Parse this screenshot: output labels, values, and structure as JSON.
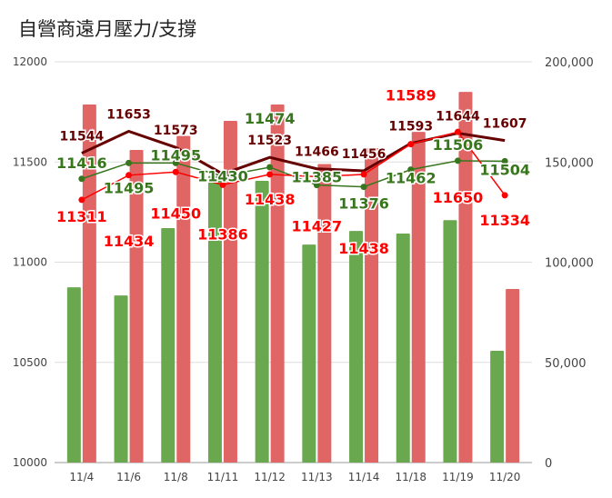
{
  "chart_data": {
    "type": "bar+line",
    "title": "自營商遠月壓力/支撐",
    "categories": [
      "11/4",
      "11/6",
      "11/8",
      "11/11",
      "11/12",
      "11/13",
      "11/14",
      "11/18",
      "11/19",
      "11/20"
    ],
    "left_axis": {
      "ylim": [
        10000,
        12000
      ],
      "ticks": [
        "10000",
        "10500",
        "11000",
        "11500",
        "12000"
      ]
    },
    "right_axis": {
      "ylim": [
        0,
        200000
      ],
      "ticks": [
        "0",
        "50,000",
        "100,000",
        "150,000",
        "200,000"
      ]
    },
    "grid": true,
    "bars": [
      {
        "color": "#6aa84f",
        "axis": "right",
        "values": [
          87500,
          83400,
          117000,
          143000,
          140600,
          108800,
          115600,
          114300,
          121000,
          55800
        ]
      },
      {
        "color": "#e06666",
        "axis": "right",
        "values": [
          178700,
          156000,
          163000,
          170500,
          178700,
          149000,
          157000,
          165000,
          185000,
          86600
        ]
      }
    ],
    "lines": [
      {
        "color": "#660000",
        "axis": "left",
        "values": [
          11544,
          11653,
          11573,
          11440,
          11523,
          11466,
          11456,
          11593,
          11644,
          11607
        ],
        "labels": [
          "11544",
          "11653",
          "11573",
          "",
          "11523",
          "11466",
          "11456",
          "11593",
          "11644",
          "11607"
        ]
      },
      {
        "color": "#38761d",
        "axis": "left",
        "values": [
          11416,
          11495,
          11495,
          11430,
          11474,
          11385,
          11376,
          11462,
          11506,
          11504
        ],
        "labels": [
          "11416",
          "11495",
          "11495",
          "11430",
          "11474",
          "11385",
          "11376",
          "11462",
          "11506",
          "11504"
        ]
      },
      {
        "color": "#ff0000",
        "axis": "left",
        "values": [
          11311,
          11434,
          11450,
          11386,
          11438,
          11427,
          11438,
          11589,
          11650,
          11334
        ],
        "labels": [
          "11311",
          "11434",
          "11450",
          "11386",
          "11438",
          "11427",
          "11438",
          "11589",
          "11650",
          "11334"
        ]
      }
    ]
  }
}
